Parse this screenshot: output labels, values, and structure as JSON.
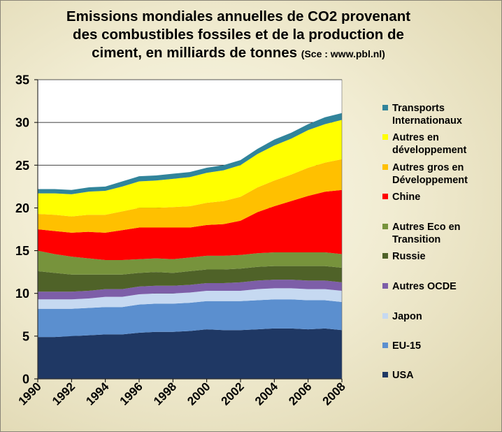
{
  "title": {
    "line1": "Emissions mondiales annuelles de CO2 provenant",
    "line2": "des combustibles fossiles et de la production de",
    "line3": "ciment, en milliards de tonnes",
    "source": "(Sce : www.pbl.nl)"
  },
  "chart_data": {
    "type": "area",
    "stacked": true,
    "title": "Emissions mondiales annuelles de CO2 provenant des combustibles fossiles et de la production de ciment, en milliards de tonnes (Sce : www.pbl.nl)",
    "xlabel": "",
    "ylabel": "",
    "ylim": [
      0,
      35
    ],
    "yticks": [
      0,
      5,
      10,
      15,
      20,
      25,
      30,
      35
    ],
    "x": [
      1990,
      1991,
      1992,
      1993,
      1994,
      1995,
      1996,
      1997,
      1998,
      1999,
      2000,
      2001,
      2002,
      2003,
      2004,
      2005,
      2006,
      2007,
      2008
    ],
    "xticks": [
      1990,
      1992,
      1994,
      1996,
      1998,
      2000,
      2002,
      2004,
      2006,
      2008
    ],
    "grid": "horizontal",
    "legend": "right",
    "series": [
      {
        "name": "USA",
        "color": "#1f3864",
        "values": [
          4.9,
          4.9,
          5.0,
          5.1,
          5.2,
          5.2,
          5.4,
          5.5,
          5.5,
          5.6,
          5.8,
          5.7,
          5.7,
          5.8,
          5.9,
          5.9,
          5.8,
          5.9,
          5.7
        ]
      },
      {
        "name": "EU-15",
        "color": "#5b8fcf",
        "values": [
          3.3,
          3.3,
          3.2,
          3.2,
          3.2,
          3.2,
          3.3,
          3.3,
          3.3,
          3.3,
          3.3,
          3.4,
          3.4,
          3.4,
          3.4,
          3.4,
          3.4,
          3.3,
          3.3
        ]
      },
      {
        "name": "Japon",
        "color": "#c6d9f1",
        "values": [
          1.1,
          1.1,
          1.1,
          1.1,
          1.2,
          1.2,
          1.2,
          1.2,
          1.2,
          1.2,
          1.2,
          1.2,
          1.2,
          1.3,
          1.3,
          1.3,
          1.3,
          1.3,
          1.3
        ]
      },
      {
        "name": "Autres OCDE",
        "color": "#7d5ea8",
        "values": [
          0.9,
          0.9,
          0.9,
          0.9,
          0.9,
          0.9,
          0.9,
          0.9,
          0.9,
          0.9,
          0.9,
          0.9,
          1.0,
          1.0,
          1.0,
          1.0,
          1.0,
          1.0,
          1.0
        ]
      },
      {
        "name": "Russie",
        "color": "#4f6228",
        "values": [
          2.4,
          2.2,
          2.0,
          1.9,
          1.7,
          1.7,
          1.6,
          1.6,
          1.5,
          1.6,
          1.6,
          1.6,
          1.6,
          1.6,
          1.6,
          1.6,
          1.7,
          1.7,
          1.7
        ]
      },
      {
        "name": "Autres Eco en Transition",
        "color": "#77933c",
        "values": [
          2.4,
          2.2,
          2.1,
          1.9,
          1.7,
          1.7,
          1.6,
          1.6,
          1.6,
          1.6,
          1.6,
          1.6,
          1.6,
          1.6,
          1.6,
          1.6,
          1.6,
          1.6,
          1.6
        ]
      },
      {
        "name": "Chine",
        "color": "#ff0000",
        "values": [
          2.5,
          2.7,
          2.8,
          3.1,
          3.2,
          3.5,
          3.7,
          3.6,
          3.7,
          3.5,
          3.6,
          3.7,
          4.0,
          4.8,
          5.4,
          6.0,
          6.6,
          7.1,
          7.5
        ]
      },
      {
        "name": "Autres gros en Développement",
        "color": "#ffc000",
        "values": [
          1.8,
          1.9,
          1.9,
          2.0,
          2.1,
          2.2,
          2.3,
          2.3,
          2.4,
          2.5,
          2.6,
          2.7,
          2.8,
          2.9,
          3.0,
          3.1,
          3.3,
          3.4,
          3.6
        ]
      },
      {
        "name": "Autres en développement",
        "color": "#ffff00",
        "values": [
          2.4,
          2.5,
          2.6,
          2.7,
          2.8,
          2.9,
          3.1,
          3.2,
          3.3,
          3.4,
          3.5,
          3.6,
          3.7,
          3.9,
          4.1,
          4.2,
          4.4,
          4.5,
          4.6
        ]
      },
      {
        "name": "Transports Internationaux",
        "color": "#31849b",
        "values": [
          0.5,
          0.5,
          0.5,
          0.5,
          0.5,
          0.6,
          0.6,
          0.6,
          0.6,
          0.6,
          0.6,
          0.6,
          0.6,
          0.6,
          0.7,
          0.7,
          0.7,
          0.8,
          0.8
        ]
      }
    ]
  },
  "legend": [
    {
      "label": "Transports Internationaux",
      "color": "#31849b"
    },
    {
      "label": "Autres en développement",
      "color": "#ffff00"
    },
    {
      "label": "Autres gros en Développement",
      "color": "#ffc000"
    },
    {
      "label": "Chine",
      "color": "#ff0000"
    },
    {
      "label": "Autres Eco en Transition",
      "color": "#77933c"
    },
    {
      "label": "Russie",
      "color": "#4f6228"
    },
    {
      "label": "Autres OCDE",
      "color": "#7d5ea8"
    },
    {
      "label": "Japon",
      "color": "#c6d9f1"
    },
    {
      "label": "EU-15",
      "color": "#5b8fcf"
    },
    {
      "label": "USA",
      "color": "#1f3864"
    }
  ]
}
